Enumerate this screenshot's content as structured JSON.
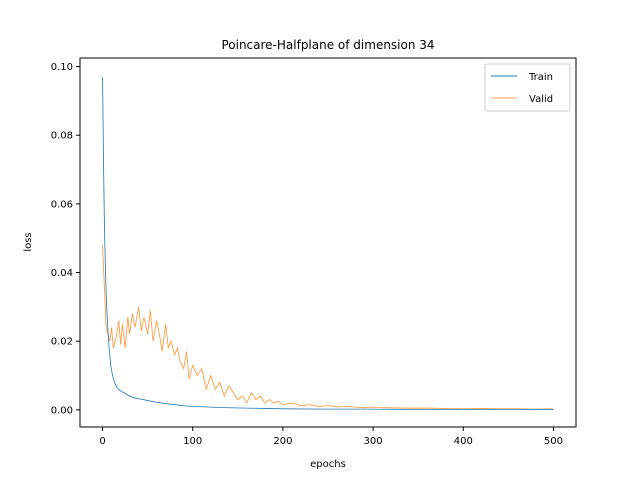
{
  "chart_data": {
    "type": "line",
    "title": "Poincare-Halfplane of dimension 34",
    "xlabel": "epochs",
    "ylabel": "loss",
    "xlim": [
      -25,
      525
    ],
    "ylim": [
      -0.005,
      0.1025
    ],
    "xticks": [
      0,
      100,
      200,
      300,
      400,
      500
    ],
    "yticks": [
      0.0,
      0.02,
      0.04,
      0.06,
      0.08,
      0.1
    ],
    "ytick_labels": [
      "0.00",
      "0.02",
      "0.04",
      "0.06",
      "0.08",
      "0.10"
    ],
    "legend_position": "top-right",
    "grid": false,
    "series": [
      {
        "name": "Train",
        "color": "#1f77b4",
        "x": [
          0,
          1,
          2,
          3,
          4,
          5,
          6,
          7,
          8,
          9,
          10,
          12,
          14,
          16,
          18,
          20,
          25,
          30,
          35,
          40,
          45,
          50,
          60,
          70,
          80,
          90,
          100,
          120,
          140,
          160,
          180,
          200,
          250,
          300,
          350,
          400,
          450,
          500
        ],
        "values": [
          0.097,
          0.074,
          0.055,
          0.043,
          0.034,
          0.028,
          0.023,
          0.019,
          0.016,
          0.013,
          0.0115,
          0.009,
          0.0075,
          0.0065,
          0.006,
          0.0055,
          0.0048,
          0.004,
          0.0035,
          0.0032,
          0.003,
          0.0027,
          0.0022,
          0.0018,
          0.0015,
          0.0012,
          0.001,
          0.0008,
          0.0006,
          0.0005,
          0.0004,
          0.0003,
          0.0002,
          0.0002,
          0.0001,
          0.0001,
          0.0001,
          0.0001
        ]
      },
      {
        "name": "Valid",
        "color": "#ff7f0e",
        "x": [
          0,
          2,
          4,
          6,
          8,
          10,
          12,
          15,
          18,
          20,
          22,
          25,
          28,
          30,
          33,
          36,
          40,
          43,
          46,
          50,
          53,
          56,
          60,
          63,
          66,
          70,
          73,
          76,
          80,
          83,
          86,
          90,
          93,
          96,
          100,
          105,
          110,
          115,
          120,
          125,
          130,
          135,
          140,
          145,
          150,
          155,
          160,
          165,
          170,
          175,
          180,
          185,
          190,
          195,
          200,
          210,
          220,
          230,
          240,
          250,
          260,
          270,
          280,
          290,
          300,
          320,
          340,
          360,
          380,
          400,
          420,
          440,
          460,
          480,
          500
        ],
        "values": [
          0.048,
          0.036,
          0.024,
          0.022,
          0.02,
          0.024,
          0.018,
          0.021,
          0.026,
          0.019,
          0.025,
          0.018,
          0.027,
          0.022,
          0.028,
          0.024,
          0.03,
          0.023,
          0.027,
          0.022,
          0.029,
          0.02,
          0.026,
          0.022,
          0.017,
          0.025,
          0.018,
          0.02,
          0.016,
          0.018,
          0.014,
          0.012,
          0.017,
          0.009,
          0.013,
          0.01,
          0.012,
          0.006,
          0.01,
          0.006,
          0.008,
          0.004,
          0.007,
          0.005,
          0.003,
          0.004,
          0.002,
          0.005,
          0.003,
          0.004,
          0.002,
          0.003,
          0.002,
          0.0025,
          0.0015,
          0.002,
          0.0012,
          0.0015,
          0.001,
          0.0012,
          0.0008,
          0.001,
          0.0008,
          0.0006,
          0.0008,
          0.0006,
          0.0005,
          0.0005,
          0.0004,
          0.0003,
          0.0004,
          0.0003,
          0.0003,
          0.0002,
          0.0003
        ]
      }
    ]
  }
}
